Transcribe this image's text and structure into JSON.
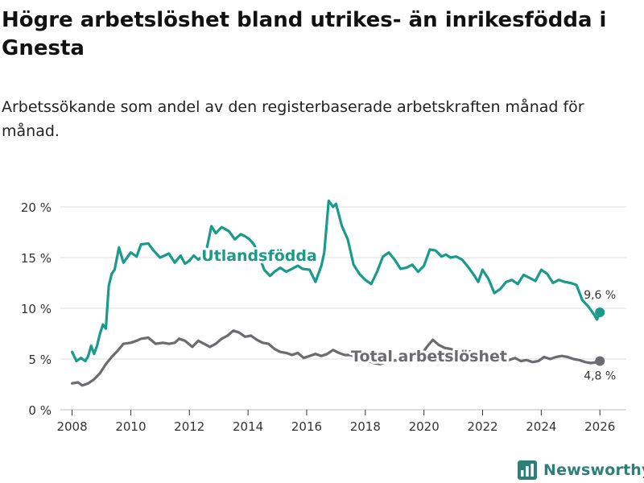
{
  "title": "Högre arbetslöshet bland utrikes- än inrikesfödda i Gnesta",
  "subtitle": "Arbetssökande som andel av den registerbaserade arbetskraften månad för månad.",
  "brand": {
    "name": "Newsworthy",
    "icon": "bar-chart-icon"
  },
  "colors": {
    "foreign": "#1a9a8a",
    "total": "#6b6b70",
    "grid": "#dddddd",
    "axis": "#333333"
  },
  "chart_data": {
    "type": "line",
    "title": "Högre arbetslöshet bland utrikes- än inrikesfödda i Gnesta",
    "xlabel": "",
    "ylabel": "",
    "xlim": [
      2007.6,
      2026.9
    ],
    "ylim": [
      0,
      20
    ],
    "x_ticks": [
      2008,
      2010,
      2012,
      2014,
      2016,
      2018,
      2020,
      2022,
      2024,
      2026
    ],
    "x_tick_labels": [
      "2008",
      "2010",
      "2012",
      "2014",
      "2016",
      "2018",
      "2020",
      "2022",
      "2024",
      "2026"
    ],
    "y_ticks": [
      0,
      5,
      10,
      15,
      20
    ],
    "y_tick_labels": [
      "0 %",
      "5 %",
      "10 %",
      "15 %",
      "20 %"
    ],
    "series": [
      {
        "name": "Utlandsfödda",
        "label": "Utlandsfödda",
        "end_label": "9,6 %",
        "x": [
          2008.0,
          2008.15,
          2008.3,
          2008.45,
          2008.55,
          2008.65,
          2008.75,
          2008.85,
          2008.95,
          2009.05,
          2009.15,
          2009.25,
          2009.35,
          2009.45,
          2009.6,
          2009.75,
          2010.0,
          2010.2,
          2010.35,
          2010.6,
          2010.75,
          2011.0,
          2011.3,
          2011.5,
          2011.7,
          2011.85,
          2012.0,
          2012.15,
          2012.3,
          2012.55,
          2012.75,
          2012.9,
          2013.1,
          2013.35,
          2013.55,
          2013.75,
          2013.9,
          2014.05,
          2014.2,
          2014.35,
          2014.55,
          2014.75,
          2014.9,
          2015.1,
          2015.3,
          2015.5,
          2015.7,
          2015.85,
          2016.1,
          2016.3,
          2016.5,
          2016.6,
          2016.75,
          2016.9,
          2017.0,
          2017.2,
          2017.4,
          2017.6,
          2017.8,
          2018.0,
          2018.2,
          2018.4,
          2018.6,
          2018.8,
          2019.0,
          2019.2,
          2019.4,
          2019.6,
          2019.8,
          2020.0,
          2020.2,
          2020.4,
          2020.6,
          2020.75,
          2020.9,
          2021.1,
          2021.3,
          2021.5,
          2021.7,
          2021.85,
          2022.0,
          2022.2,
          2022.4,
          2022.6,
          2022.8,
          2023.0,
          2023.2,
          2023.4,
          2023.6,
          2023.8,
          2024.0,
          2024.2,
          2024.4,
          2024.6,
          2024.8,
          2025.0,
          2025.2,
          2025.4,
          2025.6,
          2025.8,
          2025.9,
          2026.0
        ],
        "y": [
          5.7,
          4.8,
          5.1,
          4.8,
          5.3,
          6.3,
          5.5,
          6.3,
          7.5,
          8.4,
          8.0,
          12.2,
          13.4,
          13.8,
          16.0,
          14.5,
          15.5,
          15.1,
          16.3,
          16.4,
          15.8,
          15.0,
          15.4,
          14.5,
          15.2,
          14.4,
          14.7,
          15.2,
          14.8,
          15.3,
          18.1,
          17.4,
          18.0,
          17.6,
          16.8,
          17.3,
          17.1,
          16.8,
          16.3,
          15.4,
          13.8,
          13.2,
          13.6,
          14.0,
          13.6,
          13.9,
          14.2,
          13.9,
          13.8,
          12.6,
          14.2,
          15.5,
          20.6,
          20.0,
          20.3,
          18.1,
          16.8,
          14.3,
          13.4,
          12.8,
          12.4,
          13.6,
          15.1,
          15.5,
          14.8,
          13.9,
          14.0,
          14.3,
          13.6,
          14.2,
          15.8,
          15.7,
          15.1,
          15.3,
          15.0,
          15.1,
          14.8,
          14.1,
          13.3,
          12.6,
          13.8,
          12.9,
          11.5,
          11.9,
          12.6,
          12.8,
          12.4,
          13.3,
          13.0,
          12.7,
          13.8,
          13.4,
          12.5,
          12.8,
          12.6,
          12.5,
          12.3,
          10.8,
          10.2,
          9.4,
          8.9,
          9.6
        ]
      },
      {
        "name": "Total arbetslöshet",
        "label": "Total arbetslöshet",
        "end_label": "4,8 %",
        "x": [
          2008.0,
          2008.2,
          2008.35,
          2008.55,
          2008.75,
          2008.95,
          2009.15,
          2009.35,
          2009.55,
          2009.75,
          2010.0,
          2010.2,
          2010.35,
          2010.6,
          2010.85,
          2011.1,
          2011.3,
          2011.5,
          2011.65,
          2011.85,
          2012.1,
          2012.3,
          2012.5,
          2012.7,
          2012.9,
          2013.1,
          2013.3,
          2013.5,
          2013.7,
          2013.9,
          2014.1,
          2014.3,
          2014.5,
          2014.7,
          2014.9,
          2015.1,
          2015.3,
          2015.5,
          2015.7,
          2015.9,
          2016.1,
          2016.3,
          2016.5,
          2016.7,
          2016.9,
          2017.1,
          2017.3,
          2017.5,
          2017.7,
          2017.9,
          2018.1,
          2018.3,
          2018.5,
          2018.7,
          2018.9,
          2019.1,
          2019.3,
          2019.5,
          2019.7,
          2019.9,
          2020.1,
          2020.3,
          2020.5,
          2020.7,
          2020.9,
          2021.1,
          2021.3,
          2021.5,
          2021.7,
          2021.9,
          2022.1,
          2022.3,
          2022.5,
          2022.7,
          2022.9,
          2023.1,
          2023.3,
          2023.5,
          2023.7,
          2023.9,
          2024.1,
          2024.3,
          2024.5,
          2024.7,
          2024.9,
          2025.1,
          2025.3,
          2025.5,
          2025.7,
          2025.9,
          2026.0
        ],
        "y": [
          2.6,
          2.7,
          2.4,
          2.6,
          3.0,
          3.6,
          4.5,
          5.2,
          5.8,
          6.5,
          6.6,
          6.8,
          7.0,
          7.1,
          6.5,
          6.6,
          6.5,
          6.6,
          7.0,
          6.8,
          6.2,
          6.8,
          6.5,
          6.2,
          6.5,
          7.0,
          7.3,
          7.8,
          7.6,
          7.2,
          7.3,
          6.9,
          6.6,
          6.5,
          6.0,
          5.7,
          5.6,
          5.4,
          5.6,
          5.1,
          5.3,
          5.5,
          5.3,
          5.5,
          5.9,
          5.6,
          5.4,
          5.4,
          5.1,
          4.8,
          4.8,
          4.6,
          4.5,
          4.7,
          4.8,
          4.9,
          5.0,
          5.1,
          5.2,
          5.4,
          6.2,
          6.9,
          6.4,
          6.1,
          6.0,
          5.8,
          6.0,
          5.8,
          5.6,
          5.4,
          5.2,
          5.1,
          5.0,
          4.9,
          4.9,
          5.1,
          4.8,
          4.9,
          4.7,
          4.8,
          5.2,
          5.0,
          5.2,
          5.3,
          5.2,
          5.0,
          4.9,
          4.7,
          4.6,
          4.7,
          4.8
        ]
      }
    ]
  }
}
